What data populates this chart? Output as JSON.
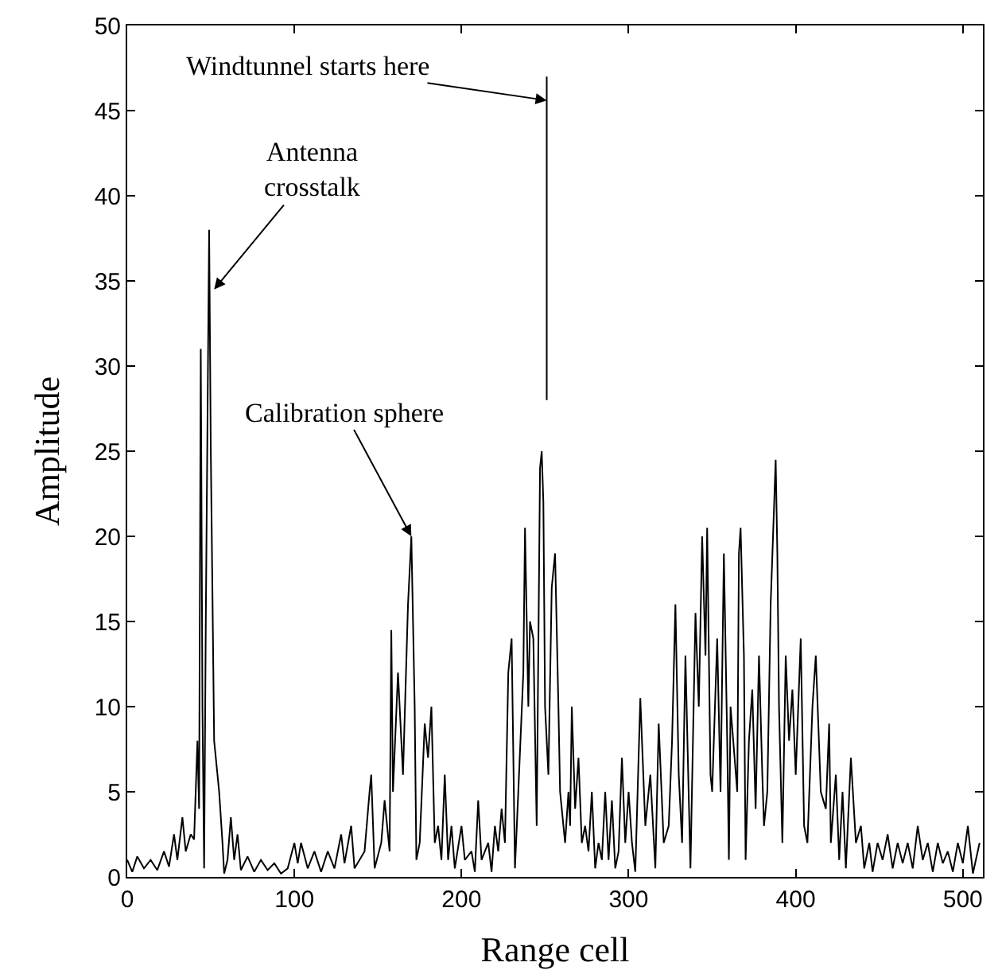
{
  "chart_data": {
    "type": "line",
    "xlabel": "Range cell",
    "ylabel": "Amplitude",
    "xlim": [
      0,
      512
    ],
    "ylim": [
      0,
      50
    ],
    "xticks": [
      0,
      100,
      200,
      300,
      400,
      500
    ],
    "yticks": [
      0,
      5,
      10,
      15,
      20,
      25,
      30,
      35,
      40,
      45,
      50
    ],
    "marker": "none",
    "line_style": "solid",
    "series": [
      {
        "color": "#000000",
        "x": [
          0,
          3,
          6,
          10,
          14,
          18,
          22,
          25,
          28,
          30,
          33,
          35,
          38,
          40,
          42,
          43,
          44,
          45,
          46,
          47,
          49,
          50,
          52,
          55,
          57,
          58,
          60,
          62,
          64,
          66,
          68,
          72,
          76,
          80,
          84,
          88,
          92,
          96,
          100,
          102,
          104,
          108,
          112,
          116,
          120,
          124,
          128,
          130,
          134,
          136,
          142,
          145,
          146,
          148,
          152,
          154,
          157,
          158,
          159,
          162,
          165,
          168,
          170,
          172,
          173,
          175,
          178,
          180,
          182,
          184,
          186,
          188,
          190,
          192,
          194,
          196,
          200,
          202,
          206,
          208,
          210,
          212,
          216,
          218,
          220,
          222,
          224,
          226,
          228,
          230,
          232,
          234,
          237,
          238,
          240,
          241,
          243,
          245,
          247,
          248,
          249,
          250,
          252,
          254,
          256,
          258,
          259,
          262,
          264,
          265,
          266,
          268,
          270,
          272,
          274,
          276,
          278,
          280,
          282,
          284,
          286,
          288,
          290,
          292,
          294,
          296,
          298,
          300,
          302,
          304,
          307,
          310,
          313,
          316,
          318,
          321,
          324,
          326,
          328,
          330,
          332,
          334,
          337,
          340,
          342,
          344,
          346,
          347,
          349,
          350,
          353,
          355,
          357,
          359,
          360,
          361,
          365,
          366,
          367,
          369,
          370,
          372,
          374,
          376,
          378,
          380,
          381,
          383,
          385,
          388,
          389,
          390,
          392,
          394,
          396,
          398,
          400,
          403,
          405,
          407,
          410,
          412,
          415,
          418,
          420,
          421,
          424,
          426,
          428,
          430,
          433,
          436,
          439,
          441,
          444,
          446,
          449,
          452,
          455,
          458,
          461,
          464,
          467,
          470,
          473,
          476,
          479,
          482,
          485,
          488,
          491,
          494,
          497,
          500,
          503,
          506,
          510
        ],
        "values": [
          1,
          0.3,
          1.2,
          0.5,
          1,
          0.4,
          1.5,
          0.6,
          2.5,
          1,
          3.5,
          1.5,
          2.5,
          2.2,
          8,
          4,
          31,
          10,
          0.5,
          15,
          38,
          25,
          8,
          5,
          2,
          0.2,
          1,
          3.5,
          1,
          2.5,
          0.4,
          1.2,
          0.3,
          1,
          0.4,
          0.8,
          0.2,
          0.5,
          2,
          0.8,
          2,
          0.5,
          1.5,
          0.3,
          1.5,
          0.5,
          2.5,
          0.8,
          3,
          0.5,
          1.5,
          5,
          6,
          0.5,
          2,
          4.5,
          1.5,
          14.5,
          5,
          12,
          6,
          16,
          20,
          10,
          1,
          2,
          9,
          7,
          10,
          2,
          3,
          1,
          6,
          1,
          3,
          0.5,
          3,
          1,
          1.5,
          0.3,
          4.5,
          1,
          2,
          0.3,
          3,
          1.5,
          4,
          2,
          12,
          14,
          0.5,
          5,
          12,
          20.5,
          10,
          15,
          14,
          3,
          24,
          25,
          22,
          10,
          6,
          17,
          19,
          10,
          5,
          2,
          5,
          3,
          10,
          4,
          7,
          2,
          3,
          1.5,
          5,
          0.5,
          2,
          1,
          5,
          1,
          4.5,
          0.5,
          1.5,
          7,
          2,
          5,
          2,
          0.3,
          10.5,
          3,
          6,
          0.5,
          9,
          2,
          3,
          8,
          16,
          6,
          2,
          13,
          0.5,
          15.5,
          10,
          20,
          13,
          20.5,
          6,
          5,
          14,
          5,
          19,
          8,
          1,
          10,
          5,
          19,
          20.5,
          13,
          1,
          8,
          11,
          4,
          13,
          6,
          3,
          5,
          16,
          24.5,
          19,
          10,
          2,
          13,
          8,
          11,
          6,
          14,
          3,
          2,
          10,
          13,
          5,
          4,
          9,
          2,
          6,
          1,
          5,
          0.5,
          7,
          2,
          3,
          0.5,
          2,
          0.3,
          2,
          1,
          2.5,
          0.5,
          2,
          0.8,
          2,
          0.5,
          3,
          1,
          2,
          0.3,
          2,
          0.8,
          1.5,
          0.3,
          2,
          0.8,
          3,
          0.2,
          2
        ]
      },
      {
        "color": "#000000",
        "x": [
          251,
          251
        ],
        "values": [
          28,
          47
        ]
      }
    ],
    "annotations": [
      {
        "text": "Windtunnel starts here",
        "x": 251,
        "y": 45.6
      },
      {
        "text": "Antenna\ncrosstalk",
        "x": 52,
        "y": 34.5
      },
      {
        "text": "Calibration sphere",
        "x": 170,
        "y": 20
      }
    ]
  }
}
